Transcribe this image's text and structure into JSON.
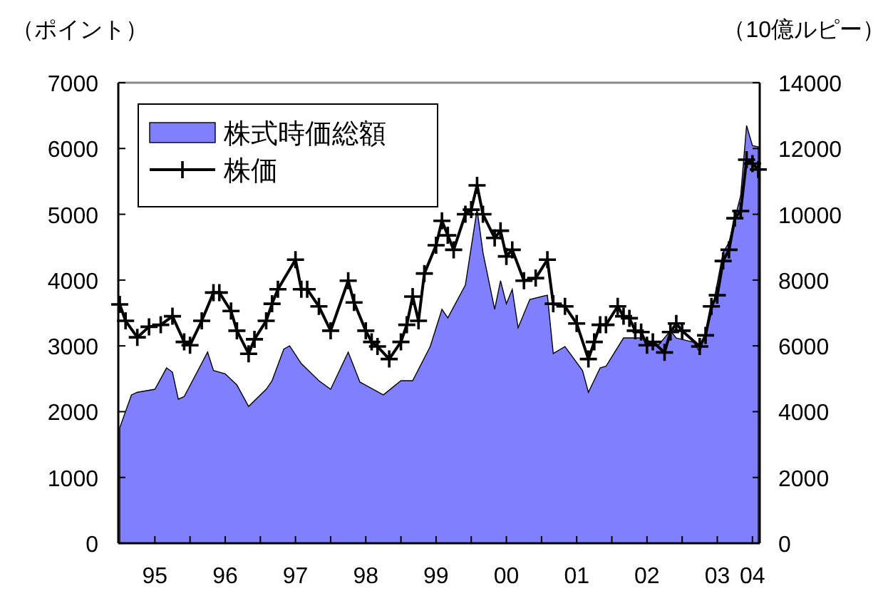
{
  "chart_data": {
    "type": "line",
    "ylabel": "（ポイント）",
    "y2label": "（10億ルピー）",
    "xlim": [
      "1995-01",
      "2004-02"
    ],
    "xticks": [
      {
        "value": "1995-07",
        "label": "95"
      },
      {
        "value": "1996-01",
        "label": null
      },
      {
        "value": "1996-07",
        "label": "96"
      },
      {
        "value": "1997-01",
        "label": null
      },
      {
        "value": "1997-07",
        "label": "97"
      },
      {
        "value": "1998-01",
        "label": null
      },
      {
        "value": "1998-07",
        "label": "98"
      },
      {
        "value": "1999-01",
        "label": null
      },
      {
        "value": "1999-07",
        "label": "99"
      },
      {
        "value": "2000-01",
        "label": null
      },
      {
        "value": "2000-07",
        "label": "00"
      },
      {
        "value": "2001-01",
        "label": null
      },
      {
        "value": "2001-07",
        "label": "01"
      },
      {
        "value": "2002-01",
        "label": null
      },
      {
        "value": "2002-07",
        "label": "02"
      },
      {
        "value": "2003-01",
        "label": null
      },
      {
        "value": "2003-07",
        "label": "03"
      },
      {
        "value": "2004-01",
        "label": "04"
      }
    ],
    "ylim": [
      0,
      7000
    ],
    "yticks": [
      0,
      1000,
      2000,
      3000,
      4000,
      5000,
      6000,
      7000
    ],
    "y2lim": [
      0,
      14000
    ],
    "y2ticks": [
      0,
      2000,
      4000,
      6000,
      8000,
      10000,
      12000,
      14000
    ],
    "legend": "top left",
    "grid": false,
    "series": [
      {
        "name": "株式時価総額",
        "type": "area",
        "axis": "y2",
        "color": "#8080ff",
        "x": [
          "1995-01",
          "1995-03",
          "1995-04",
          "1995-07",
          "1995-09",
          "1995-10",
          "1995-11",
          "1995-12",
          "1996-04",
          "1996-05",
          "1996-07",
          "1996-09",
          "1996-11",
          "1997-02",
          "1997-03",
          "1997-05",
          "1997-06",
          "1997-08",
          "1997-11",
          "1998-01",
          "1998-04",
          "1998-06",
          "1998-10",
          "1999-01",
          "1999-03",
          "1999-06",
          "1999-08",
          "1999-09",
          "1999-12",
          "2000-02",
          "2000-03",
          "2000-05",
          "2000-06",
          "2000-07",
          "2000-08",
          "2000-09",
          "2000-11",
          "2001-02",
          "2001-03",
          "2001-05",
          "2001-08",
          "2001-09",
          "2001-11",
          "2001-12",
          "2002-03",
          "2002-06",
          "2002-09",
          "2002-11",
          "2002-12",
          "2003-03",
          "2003-04",
          "2003-06",
          "2003-08",
          "2003-09",
          "2003-11",
          "2003-12",
          "2004-01",
          "2004-02"
        ],
        "values": [
          3510,
          4510,
          4590,
          4680,
          5330,
          5200,
          4380,
          4460,
          5810,
          5250,
          5150,
          4810,
          4160,
          4680,
          4940,
          5900,
          6000,
          5460,
          4940,
          4680,
          5810,
          4900,
          4510,
          4940,
          4940,
          5980,
          7110,
          6850,
          7850,
          10150,
          8840,
          7110,
          7980,
          7280,
          7720,
          6550,
          7410,
          7540,
          5770,
          5980,
          5250,
          4590,
          5330,
          5380,
          6240,
          6240,
          6030,
          6460,
          6240,
          6110,
          5810,
          6980,
          8840,
          9150,
          10580,
          12700,
          12090,
          12050
        ]
      },
      {
        "name": "株価",
        "axis": "y",
        "color": "#000000",
        "marker": "cross",
        "x": [
          "1995-01",
          "1995-02",
          "1995-04",
          "1995-06",
          "1995-08",
          "1995-10",
          "1995-12",
          "1996-01",
          "1996-03",
          "1996-05",
          "1996-06",
          "1996-08",
          "1996-09",
          "1996-11",
          "1996-12",
          "1997-02",
          "1997-03",
          "1997-04",
          "1997-07",
          "1997-08",
          "1997-09",
          "1997-11",
          "1998-01",
          "1998-04",
          "1998-05",
          "1998-07",
          "1998-08",
          "1998-09",
          "1998-11",
          "1999-01",
          "1999-02",
          "1999-03",
          "1999-04",
          "1999-05",
          "1999-07",
          "1999-08",
          "1999-09",
          "1999-10",
          "1999-12",
          "2000-01",
          "2000-02",
          "2000-03",
          "2000-05",
          "2000-06",
          "2000-07",
          "2000-08",
          "2000-10",
          "2000-12",
          "2001-02",
          "2001-03",
          "2001-05",
          "2001-07",
          "2001-09",
          "2001-10",
          "2001-11",
          "2001-12",
          "2002-02",
          "2002-03",
          "2002-04",
          "2002-05",
          "2002-06",
          "2002-07",
          "2002-08",
          "2002-10",
          "2002-11",
          "2002-12",
          "2003-01",
          "2003-04",
          "2003-05",
          "2003-06",
          "2003-07",
          "2003-08",
          "2003-09",
          "2003-10",
          "2003-11",
          "2003-12",
          "2004-01",
          "2004-02"
        ],
        "values": [
          3630,
          3380,
          3130,
          3290,
          3320,
          3450,
          3060,
          3010,
          3380,
          3810,
          3810,
          3530,
          3230,
          2880,
          3100,
          3380,
          3640,
          3860,
          4310,
          3860,
          3860,
          3600,
          3230,
          3990,
          3660,
          3230,
          3060,
          2990,
          2800,
          3060,
          3320,
          3750,
          3380,
          4100,
          4530,
          4900,
          4680,
          4460,
          5000,
          5070,
          5440,
          5000,
          4640,
          4750,
          4360,
          4460,
          3990,
          4030,
          4310,
          3640,
          3600,
          3340,
          2800,
          3060,
          3320,
          3320,
          3600,
          3450,
          3420,
          3230,
          3210,
          3010,
          3060,
          2900,
          3210,
          3340,
          3230,
          2990,
          3160,
          3600,
          3770,
          4290,
          4460,
          4940,
          5050,
          5830,
          5770,
          5680
        ]
      }
    ]
  }
}
